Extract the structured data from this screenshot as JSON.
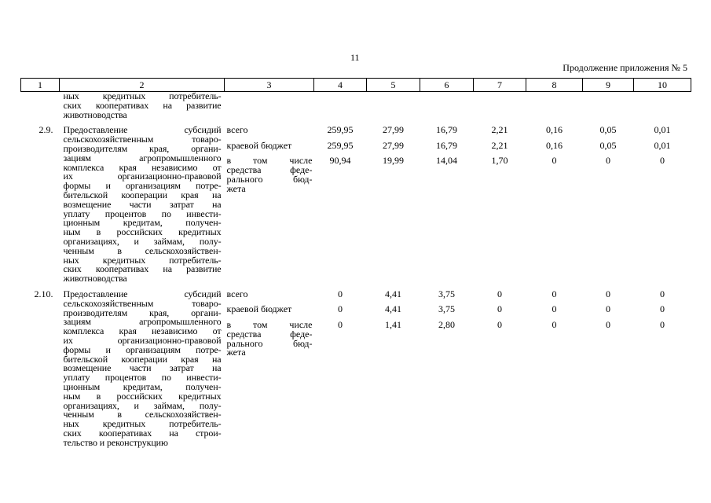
{
  "page_number": "11",
  "continuation": "Продолжение приложения № 5",
  "columns": [
    "1",
    "2",
    "3",
    "4",
    "5",
    "6",
    "7",
    "8",
    "9",
    "10"
  ],
  "carry_over": {
    "text_lines": [
      "ных кредитных потребитель-",
      "ских кооперативах на развитие",
      "животноводства"
    ]
  },
  "rows": [
    {
      "num": "2.9.",
      "text_lines": [
        "Предоставление субсидий",
        "сельскохозяйственным товаро-",
        "производителям края, органи-",
        "зациям агропромышленного",
        "комплекса края независимо от",
        "их организационно-правовой",
        "формы и организациям потре-",
        "бительской кооперации края на",
        "возмещение части затрат на",
        "уплату процентов по инвести-",
        "ционным кредитам, получен-",
        "ным в российских кредитных",
        "организациях, и займам, полу-",
        "ченным в сельскохозяйствен-",
        "ных кредитных потребитель-",
        "ских кооперативах на развитие",
        "животноводства"
      ],
      "sources": [
        {
          "label_lines": [
            "всего"
          ],
          "values": [
            "259,95",
            "27,99",
            "16,79",
            "2,21",
            "0,16",
            "0,05",
            "0,01"
          ]
        },
        {
          "label_lines": [
            "краевой бюджет"
          ],
          "values": [
            "259,95",
            "27,99",
            "16,79",
            "2,21",
            "0,16",
            "0,05",
            "0,01"
          ]
        },
        {
          "label_lines": [
            "в том числе",
            "средства феде-",
            "рального бюд-",
            "жета"
          ],
          "values": [
            "90,94",
            "19,99",
            "14,04",
            "1,70",
            "0",
            "0",
            "0"
          ]
        }
      ]
    },
    {
      "num": "2.10.",
      "text_lines": [
        "Предоставление субсидий",
        "сельскохозяйственным товаро-",
        "производителям края, органи-",
        "зациям агропромышленного",
        "комплекса края независимо от",
        "их организационно-правовой",
        "формы и организациям потре-",
        "бительской кооперации края на",
        "возмещение части затрат на",
        "уплату процентов по инвести-",
        "ционным кредитам, получен-",
        "ным в российских кредитных",
        "организациях, и займам, полу-",
        "ченным в сельскохозяйствен-",
        "ных кредитных потребитель-",
        "ских кооперативах на строи-",
        "тельство и реконструкцию"
      ],
      "sources": [
        {
          "label_lines": [
            "всего"
          ],
          "values": [
            "0",
            "4,41",
            "3,75",
            "0",
            "0",
            "0",
            "0"
          ]
        },
        {
          "label_lines": [
            "краевой бюджет"
          ],
          "values": [
            "0",
            "4,41",
            "3,75",
            "0",
            "0",
            "0",
            "0"
          ]
        },
        {
          "label_lines": [
            "в том числе",
            "средства феде-",
            "рального бюд-",
            "жета"
          ],
          "values": [
            "0",
            "1,41",
            "2,80",
            "0",
            "0",
            "0",
            "0"
          ]
        }
      ]
    }
  ]
}
